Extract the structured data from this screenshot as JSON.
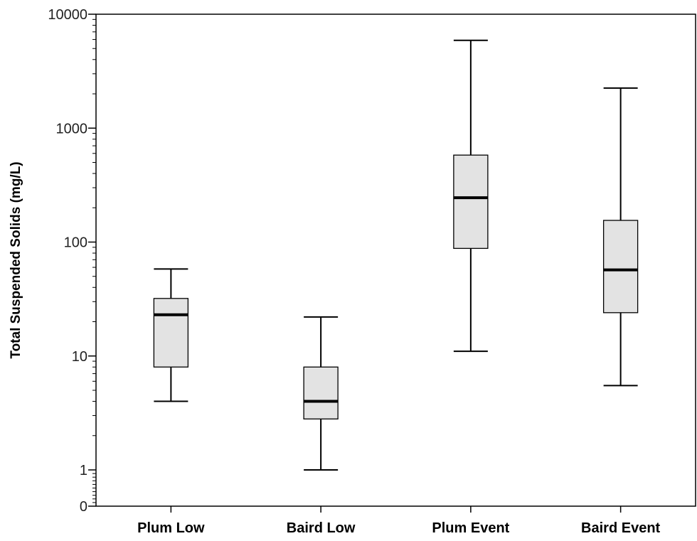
{
  "chart_data": {
    "type": "boxplot",
    "title": "",
    "xlabel": "",
    "ylabel": "Total Suspended Solids (mg/L)",
    "yscale": "log",
    "y_ticks": [
      {
        "value": 0,
        "label": "0"
      },
      {
        "value": 1,
        "label": "1"
      },
      {
        "value": 10,
        "label": "10"
      },
      {
        "value": 100,
        "label": "100"
      },
      {
        "value": 1000,
        "label": "1000"
      },
      {
        "value": 10000,
        "label": "10000"
      }
    ],
    "categories": [
      "Plum Low",
      "Baird Low",
      "Plum Event",
      "Baird Event"
    ],
    "boxes": [
      {
        "category": "Plum Low",
        "whisker_low": 4,
        "q1": 8,
        "median": 23,
        "q3": 32,
        "whisker_high": 58
      },
      {
        "category": "Baird Low",
        "whisker_low": 1,
        "q1": 2.8,
        "median": 4,
        "q3": 8,
        "whisker_high": 22
      },
      {
        "category": "Plum Event",
        "whisker_low": 11,
        "q1": 88,
        "median": 245,
        "q3": 580,
        "whisker_high": 5900
      },
      {
        "category": "Baird Event",
        "whisker_low": 5.5,
        "q1": 24,
        "median": 57,
        "q3": 155,
        "whisker_high": 2250
      }
    ],
    "grid": false,
    "box_fill": "#e3e3e3",
    "line_color": "#000000"
  }
}
